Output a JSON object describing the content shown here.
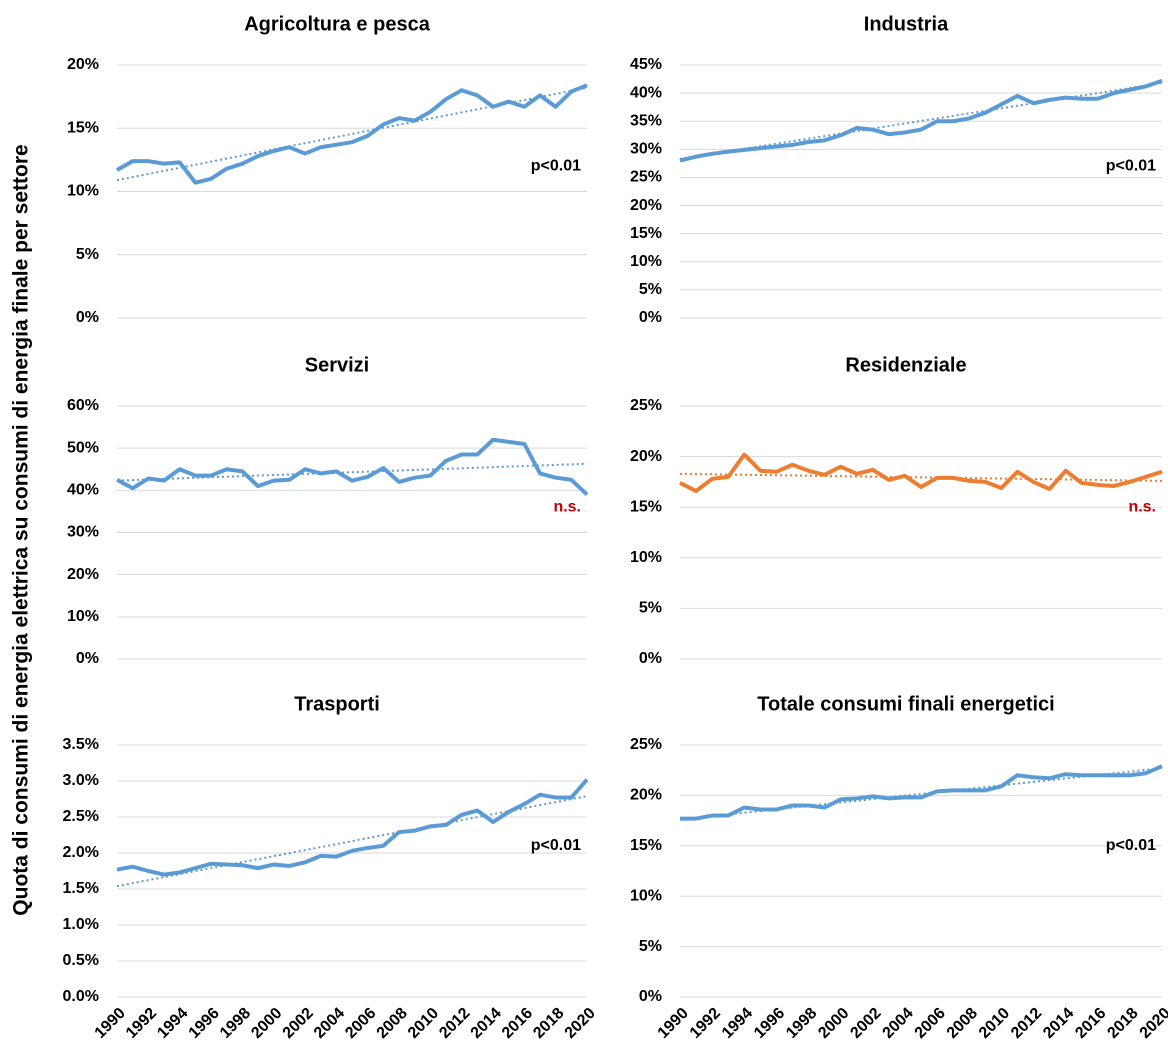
{
  "ylabel": "Quota di consumi di energia elettrica su consumi di energia finale per settore",
  "chart_data": [
    {
      "type": "line",
      "title": "Agricoltura e pesca",
      "color": "#5b9bd5",
      "annotation": "p<0.01",
      "annotation_color": "#000000",
      "x": [
        1990,
        1991,
        1992,
        1993,
        1994,
        1995,
        1996,
        1997,
        1998,
        1999,
        2000,
        2001,
        2002,
        2003,
        2004,
        2005,
        2006,
        2007,
        2008,
        2009,
        2010,
        2011,
        2012,
        2013,
        2014,
        2015,
        2016,
        2017,
        2018,
        2019,
        2020
      ],
      "values": [
        11.7,
        12.4,
        12.4,
        12.2,
        12.3,
        10.7,
        11.0,
        11.8,
        12.2,
        12.8,
        13.2,
        13.5,
        13.0,
        13.5,
        13.7,
        13.9,
        14.4,
        15.3,
        15.8,
        15.6,
        16.3,
        17.3,
        18.0,
        17.6,
        16.7,
        17.1,
        16.7,
        17.6,
        16.7,
        17.9,
        18.4
      ],
      "trend": [
        10.9,
        18.2
      ],
      "xlim": [
        1990,
        2020
      ],
      "ylim": [
        0,
        20
      ],
      "yticks": [
        {
          "value": 0,
          "label": "0%"
        },
        {
          "value": 5,
          "label": "5%"
        },
        {
          "value": 10,
          "label": "10%"
        },
        {
          "value": 15,
          "label": "15%"
        },
        {
          "value": 20,
          "label": "20%"
        }
      ],
      "grid": true
    },
    {
      "type": "line",
      "title": "Industria",
      "color": "#5b9bd5",
      "annotation": "p<0.01",
      "annotation_color": "#000000",
      "x": [
        1990,
        1991,
        1992,
        1993,
        1994,
        1995,
        1996,
        1997,
        1998,
        1999,
        2000,
        2001,
        2002,
        2003,
        2004,
        2005,
        2006,
        2007,
        2008,
        2009,
        2010,
        2011,
        2012,
        2013,
        2014,
        2015,
        2016,
        2017,
        2018,
        2019,
        2020
      ],
      "values": [
        28.0,
        28.7,
        29.2,
        29.6,
        29.9,
        30.2,
        30.5,
        30.8,
        31.3,
        31.6,
        32.5,
        33.8,
        33.5,
        32.7,
        33.0,
        33.5,
        35.0,
        35.0,
        35.5,
        36.5,
        38.0,
        39.5,
        38.2,
        38.8,
        39.2,
        39.0,
        39.0,
        40.0,
        40.6,
        41.2,
        42.2
      ],
      "trend": [
        28.3,
        41.8
      ],
      "xlim": [
        1990,
        2020
      ],
      "ylim": [
        0,
        45
      ],
      "yticks": [
        {
          "value": 0,
          "label": "0%"
        },
        {
          "value": 5,
          "label": "5%"
        },
        {
          "value": 10,
          "label": "10%"
        },
        {
          "value": 15,
          "label": "15%"
        },
        {
          "value": 20,
          "label": "20%"
        },
        {
          "value": 25,
          "label": "25%"
        },
        {
          "value": 30,
          "label": "30%"
        },
        {
          "value": 35,
          "label": "35%"
        },
        {
          "value": 40,
          "label": "40%"
        },
        {
          "value": 45,
          "label": "45%"
        }
      ],
      "grid": true
    },
    {
      "type": "line",
      "title": "Servizi",
      "color": "#5b9bd5",
      "annotation": "n.s.",
      "annotation_color": "#c00000",
      "x": [
        1990,
        1991,
        1992,
        1993,
        1994,
        1995,
        1996,
        1997,
        1998,
        1999,
        2000,
        2001,
        2002,
        2003,
        2004,
        2005,
        2006,
        2007,
        2008,
        2009,
        2010,
        2011,
        2012,
        2013,
        2014,
        2015,
        2016,
        2017,
        2018,
        2019,
        2020
      ],
      "values": [
        42.5,
        40.5,
        42.8,
        42.3,
        45.0,
        43.5,
        43.5,
        45.0,
        44.5,
        41.0,
        42.3,
        42.5,
        45.0,
        44.0,
        44.5,
        42.3,
        43.2,
        45.3,
        42.0,
        43.0,
        43.5,
        47.0,
        48.5,
        48.5,
        52.0,
        51.5,
        51.0,
        44.0,
        43.0,
        42.5,
        39.0
      ],
      "trend": [
        42.3,
        46.3
      ],
      "xlim": [
        1990,
        2020
      ],
      "ylim": [
        0,
        60
      ],
      "yticks": [
        {
          "value": 0,
          "label": "0%"
        },
        {
          "value": 10,
          "label": "10%"
        },
        {
          "value": 20,
          "label": "20%"
        },
        {
          "value": 30,
          "label": "30%"
        },
        {
          "value": 40,
          "label": "40%"
        },
        {
          "value": 50,
          "label": "50%"
        },
        {
          "value": 60,
          "label": "60%"
        }
      ],
      "grid": true
    },
    {
      "type": "line",
      "title": "Residenziale",
      "color": "#ed7d31",
      "annotation": "n.s.",
      "annotation_color": "#c00000",
      "x": [
        1990,
        1991,
        1992,
        1993,
        1994,
        1995,
        1996,
        1997,
        1998,
        1999,
        2000,
        2001,
        2002,
        2003,
        2004,
        2005,
        2006,
        2007,
        2008,
        2009,
        2010,
        2011,
        2012,
        2013,
        2014,
        2015,
        2016,
        2017,
        2018,
        2019,
        2020
      ],
      "values": [
        17.4,
        16.6,
        17.8,
        18.0,
        20.2,
        18.6,
        18.5,
        19.2,
        18.6,
        18.2,
        19.0,
        18.3,
        18.7,
        17.7,
        18.1,
        17.0,
        17.9,
        17.9,
        17.6,
        17.5,
        16.9,
        18.5,
        17.5,
        16.8,
        18.6,
        17.4,
        17.2,
        17.1,
        17.5,
        18.0,
        18.5
      ],
      "trend": [
        18.3,
        17.6
      ],
      "xlim": [
        1990,
        2020
      ],
      "ylim": [
        0,
        25
      ],
      "yticks": [
        {
          "value": 0,
          "label": "0%"
        },
        {
          "value": 5,
          "label": "5%"
        },
        {
          "value": 10,
          "label": "10%"
        },
        {
          "value": 15,
          "label": "15%"
        },
        {
          "value": 20,
          "label": "20%"
        },
        {
          "value": 25,
          "label": "25%"
        }
      ],
      "grid": true
    },
    {
      "type": "line",
      "title": "Trasporti",
      "color": "#5b9bd5",
      "annotation": "p<0.01",
      "annotation_color": "#000000",
      "x": [
        1990,
        1991,
        1992,
        1993,
        1994,
        1995,
        1996,
        1997,
        1998,
        1999,
        2000,
        2001,
        2002,
        2003,
        2004,
        2005,
        2006,
        2007,
        2008,
        2009,
        2010,
        2011,
        2012,
        2013,
        2014,
        2015,
        2016,
        2017,
        2018,
        2019,
        2020
      ],
      "values": [
        1.77,
        1.81,
        1.75,
        1.7,
        1.73,
        1.79,
        1.85,
        1.84,
        1.83,
        1.79,
        1.84,
        1.82,
        1.87,
        1.96,
        1.95,
        2.03,
        2.07,
        2.1,
        2.29,
        2.31,
        2.37,
        2.39,
        2.53,
        2.59,
        2.43,
        2.57,
        2.68,
        2.81,
        2.77,
        2.77,
        3.02
      ],
      "trend": [
        1.54,
        2.79
      ],
      "xlim": [
        1990,
        2020
      ],
      "ylim": [
        0,
        3.5
      ],
      "xticks": [
        1990,
        1992,
        1994,
        1996,
        1998,
        2000,
        2002,
        2004,
        2006,
        2008,
        2010,
        2012,
        2014,
        2016,
        2018,
        2020
      ],
      "yticks": [
        {
          "value": 0,
          "label": "0.0%"
        },
        {
          "value": 0.5,
          "label": "0.5%"
        },
        {
          "value": 1,
          "label": "1.0%"
        },
        {
          "value": 1.5,
          "label": "1.5%"
        },
        {
          "value": 2,
          "label": "2.0%"
        },
        {
          "value": 2.5,
          "label": "2.5%"
        },
        {
          "value": 3,
          "label": "3.0%"
        },
        {
          "value": 3.5,
          "label": "3.5%"
        }
      ],
      "grid": true
    },
    {
      "type": "line",
      "title": "Totale consumi finali energetici",
      "color": "#5b9bd5",
      "annotation": "p<0.01",
      "annotation_color": "#000000",
      "x": [
        1990,
        1991,
        1992,
        1993,
        1994,
        1995,
        1996,
        1997,
        1998,
        1999,
        2000,
        2001,
        2002,
        2003,
        2004,
        2005,
        2006,
        2007,
        2008,
        2009,
        2010,
        2011,
        2012,
        2013,
        2014,
        2015,
        2016,
        2017,
        2018,
        2019,
        2020
      ],
      "values": [
        17.7,
        17.7,
        18.0,
        18.0,
        18.8,
        18.6,
        18.6,
        19.0,
        19.0,
        18.8,
        19.6,
        19.7,
        19.9,
        19.7,
        19.8,
        19.8,
        20.4,
        20.5,
        20.5,
        20.5,
        20.9,
        22.0,
        21.8,
        21.7,
        22.1,
        22.0,
        22.0,
        22.0,
        22.0,
        22.2,
        22.9
      ],
      "trend": [
        17.6,
        22.7
      ],
      "xlim": [
        1990,
        2020
      ],
      "ylim": [
        0,
        25
      ],
      "xticks": [
        1990,
        1992,
        1994,
        1996,
        1998,
        2000,
        2002,
        2004,
        2006,
        2008,
        2010,
        2012,
        2014,
        2016,
        2018,
        2020
      ],
      "yticks": [
        {
          "value": 0,
          "label": "0%"
        },
        {
          "value": 5,
          "label": "5%"
        },
        {
          "value": 10,
          "label": "10%"
        },
        {
          "value": 15,
          "label": "15%"
        },
        {
          "value": 20,
          "label": "20%"
        },
        {
          "value": 25,
          "label": "25%"
        }
      ],
      "grid": true
    }
  ]
}
